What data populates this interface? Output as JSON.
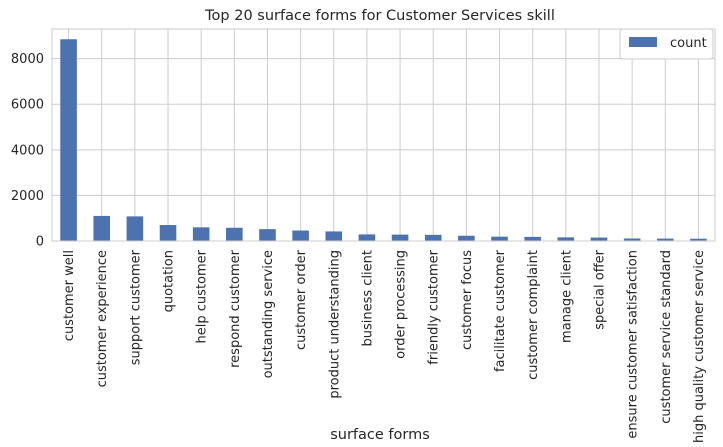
{
  "chart_data": {
    "type": "bar",
    "title": "Top 20 surface forms for Customer Services skill",
    "xlabel": "surface forms",
    "ylabel": "",
    "ylim": [
      0,
      9300
    ],
    "yticks": [
      0,
      2000,
      4000,
      6000,
      8000
    ],
    "ytick_labels": [
      "0",
      "2000",
      "4000",
      "6000",
      "8000"
    ],
    "grid": true,
    "legend": "top-right",
    "color": "#4c72b0",
    "categories": [
      "customer well",
      "customer experience",
      "support customer",
      "quotation",
      "help customer",
      "respond customer",
      "outstanding service",
      "customer order",
      "product understanding",
      "business client",
      "order processing",
      "friendly customer",
      "customer focus",
      "facilitate customer",
      "customer complaint",
      "manage client",
      "special offer",
      "ensure customer satisfaction",
      "customer service standard",
      "high quality customer service"
    ],
    "series": [
      {
        "name": "count",
        "values": [
          8850,
          1100,
          1080,
          700,
          600,
          580,
          520,
          460,
          420,
          290,
          280,
          270,
          230,
          190,
          180,
          160,
          150,
          110,
          105,
          100
        ]
      }
    ]
  }
}
